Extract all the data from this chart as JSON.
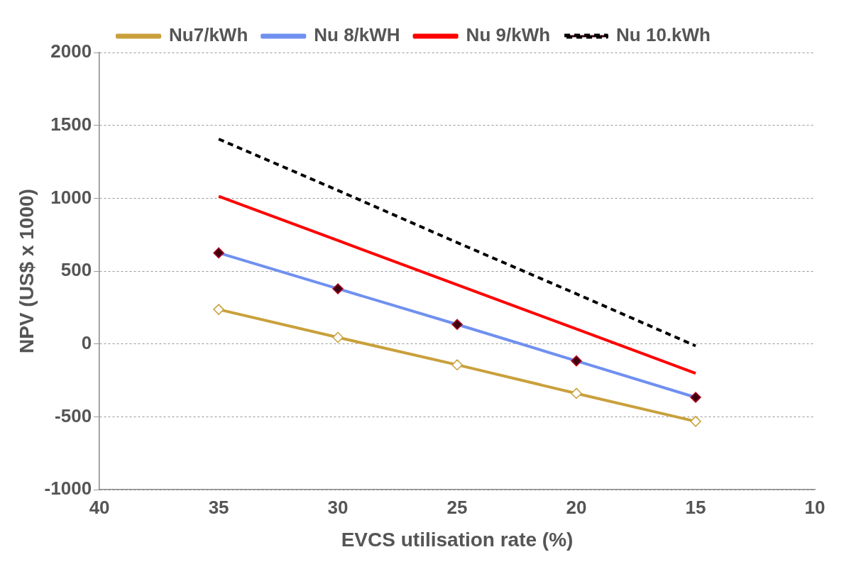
{
  "chart_data": {
    "type": "line",
    "xlabel": "EVCS utilisation rate (%)",
    "ylabel": "NPV (US$ x 1000)",
    "x": [
      35,
      30,
      25,
      20,
      15
    ],
    "xlim": [
      40,
      10
    ],
    "xticks": [
      40,
      35,
      30,
      25,
      20,
      15,
      10
    ],
    "ylim": [
      -1000,
      2000
    ],
    "yticks": [
      -1000,
      -500,
      0,
      500,
      1000,
      1500,
      2000
    ],
    "grid": "y",
    "legend": "top",
    "series": [
      {
        "name": "Nu7/kWh",
        "color": "#c9a03c",
        "values": [
          237,
          45,
          -143,
          -339,
          -531
        ],
        "marker": "diamond",
        "line_style": "solid"
      },
      {
        "name": "Nu 8/kWH",
        "color": "#7090f0",
        "values": [
          625,
          379,
          134,
          -116,
          -366
        ],
        "marker": "diamond",
        "line_style": "solid"
      },
      {
        "name": "Nu 9/kWh",
        "color": "#ff0000",
        "values": [
          1013,
          710,
          406,
          103,
          -201
        ],
        "marker": "none",
        "line_style": "solid"
      },
      {
        "name": "Nu 10.kWh",
        "color": "#000000",
        "values": [
          1406,
          1054,
          696,
          344,
          -13
        ],
        "marker": "none",
        "line_style": "dashed"
      }
    ]
  }
}
